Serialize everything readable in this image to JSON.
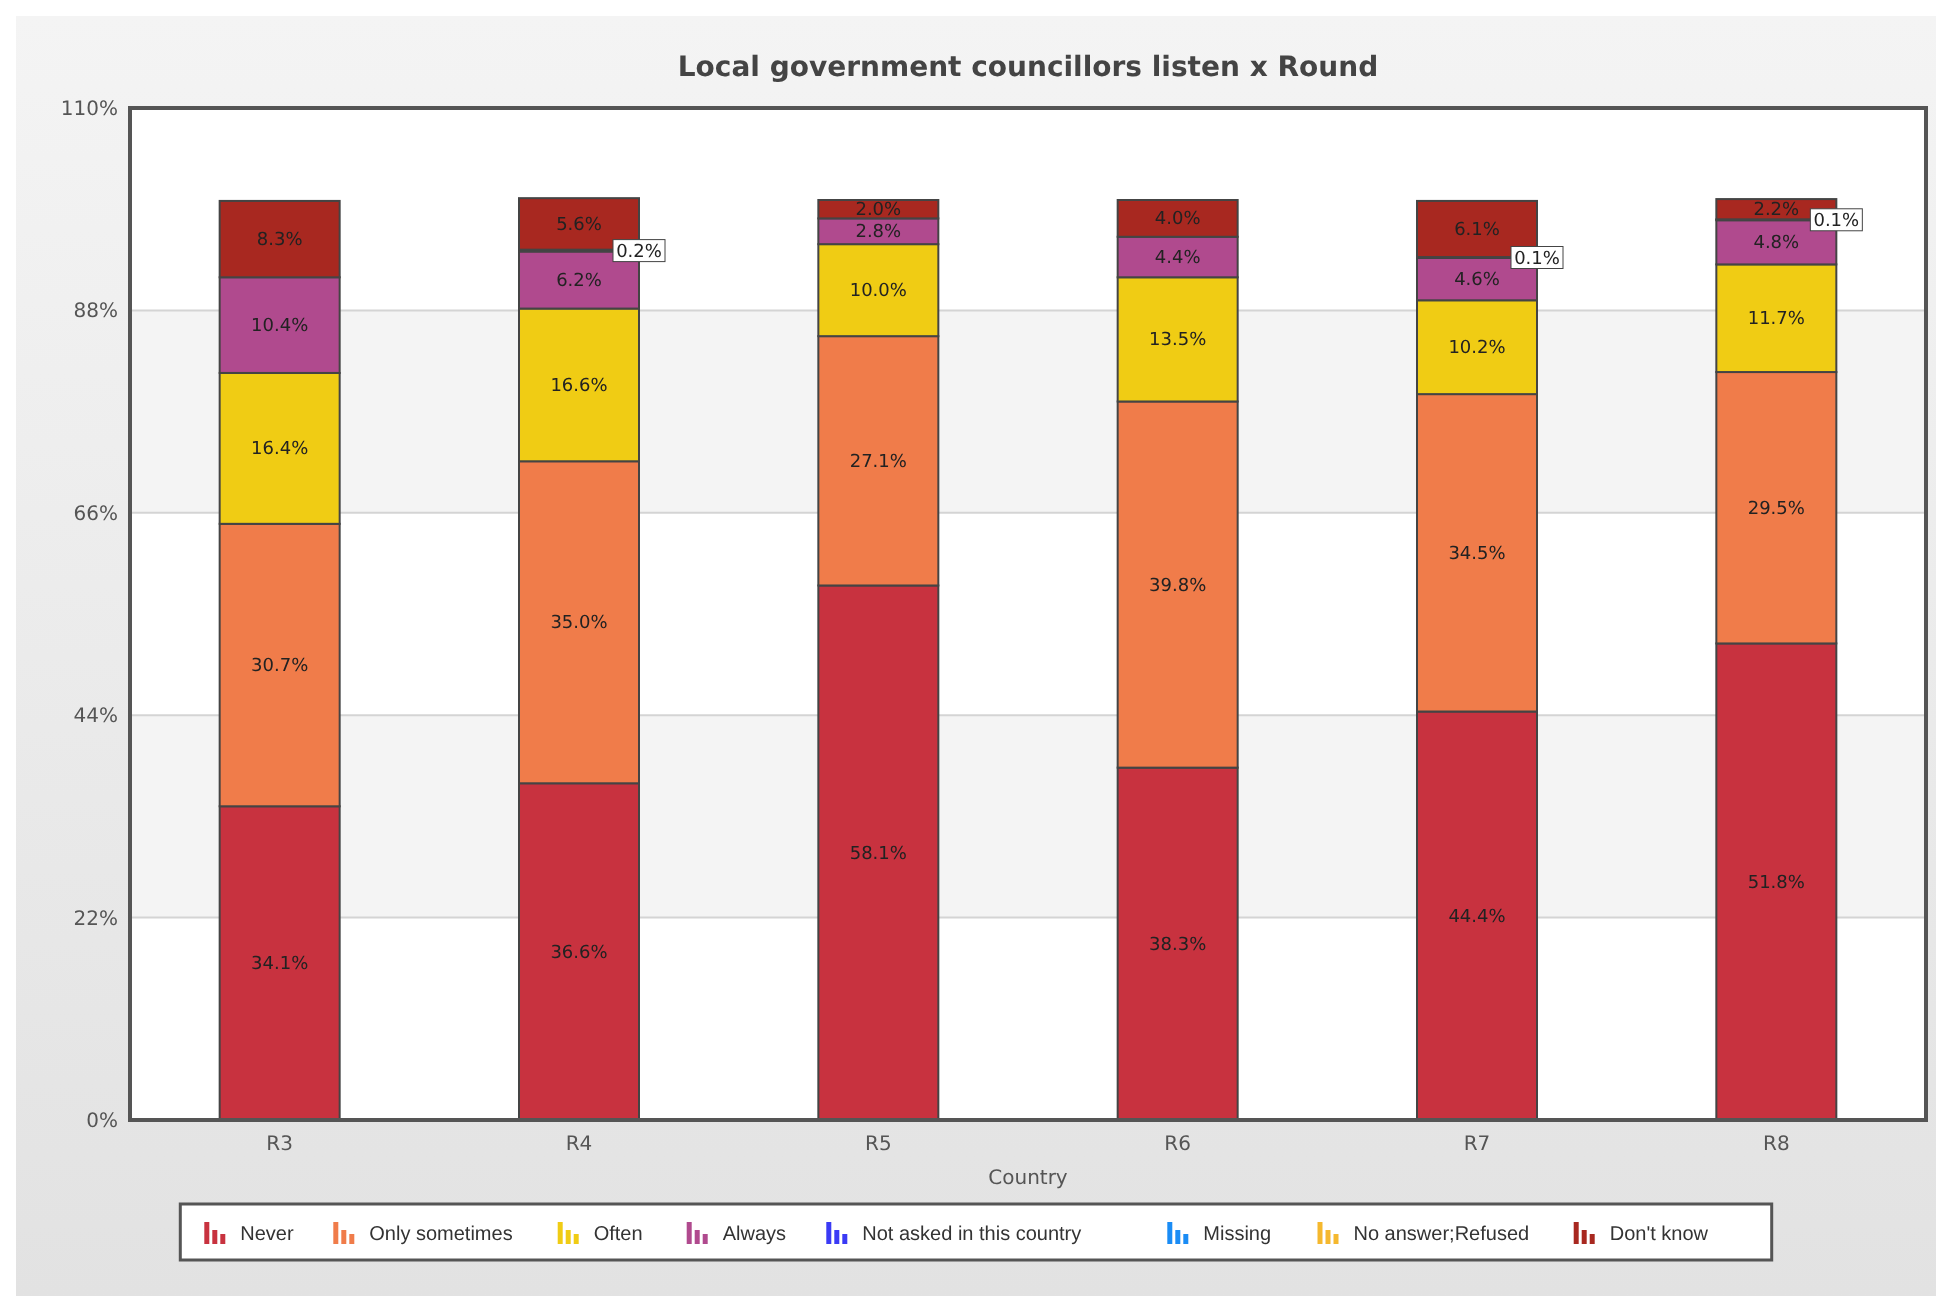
{
  "chart_data": {
    "type": "bar",
    "title": "Local government councillors listen x Round",
    "xlabel": "Country",
    "categories": [
      "R3",
      "R4",
      "R5",
      "R6",
      "R7",
      "R8"
    ],
    "stacked": true,
    "ylim": [
      0,
      110
    ],
    "yticks": [
      {
        "value": 0,
        "label": "0%"
      },
      {
        "value": 22,
        "label": "22%"
      },
      {
        "value": 44,
        "label": "44%"
      },
      {
        "value": 66,
        "label": "66%"
      },
      {
        "value": 88,
        "label": "88%"
      },
      {
        "value": 110,
        "label": "110%"
      }
    ],
    "grid": "y",
    "legend": "bottom",
    "series": [
      {
        "name": "Never",
        "color": "#c8323f",
        "values": [
          34.1,
          36.6,
          58.1,
          38.3,
          44.4,
          51.8
        ],
        "value_labels": [
          "34.1%",
          "36.6%",
          "58.1%",
          "38.3%",
          "44.4%",
          "51.8%"
        ]
      },
      {
        "name": "Only sometimes",
        "color": "#f07c4a",
        "values": [
          30.7,
          35.0,
          27.1,
          39.8,
          34.5,
          29.5
        ],
        "value_labels": [
          "30.7%",
          "35.0%",
          "27.1%",
          "39.8%",
          "34.5%",
          "29.5%"
        ]
      },
      {
        "name": "Often",
        "color": "#f0cc14",
        "values": [
          16.4,
          16.6,
          10.0,
          13.5,
          10.2,
          11.7
        ],
        "value_labels": [
          "16.4%",
          "16.6%",
          "10.0%",
          "13.5%",
          "10.2%",
          "11.7%"
        ]
      },
      {
        "name": "Always",
        "color": "#b04a8e",
        "values": [
          10.4,
          6.2,
          2.8,
          4.4,
          4.6,
          4.8
        ],
        "value_labels": [
          "10.4%",
          "6.2%",
          "2.8%",
          "4.4%",
          "4.6%",
          "4.8%"
        ]
      },
      {
        "name": "Not asked in this country",
        "color": "#3a3af5",
        "values": [
          null,
          null,
          null,
          null,
          null,
          null
        ]
      },
      {
        "name": "Missing",
        "color": "#1a8cf5",
        "values": [
          null,
          null,
          null,
          null,
          null,
          null
        ]
      },
      {
        "name": "No answer;Refused",
        "color": "#f5b82e",
        "values": [
          null,
          0.2,
          null,
          null,
          0.1,
          0.1
        ],
        "value_labels": [
          null,
          "0.2%",
          null,
          null,
          "0.1%",
          "0.1%"
        ]
      },
      {
        "name": "Don't know",
        "color": "#a82820",
        "values": [
          8.3,
          5.6,
          2.0,
          4.0,
          6.1,
          2.2
        ],
        "value_labels": [
          "8.3%",
          "5.6%",
          "2.0%",
          "4.0%",
          "6.1%",
          "2.2%"
        ]
      }
    ]
  }
}
